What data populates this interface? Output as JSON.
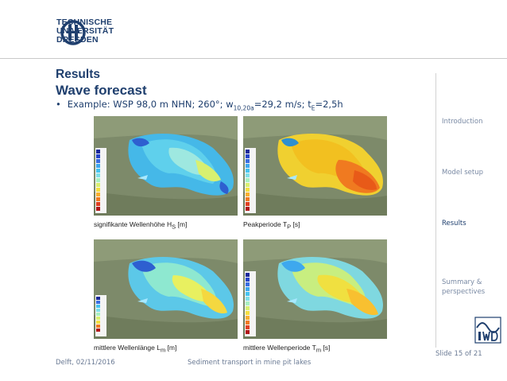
{
  "header": {
    "logo_line1": "TECHNISCHE",
    "logo_line2": "UNIVERSITÄT",
    "logo_line3": "DRESDEN"
  },
  "title": "Results",
  "subtitle": "Wave forecast",
  "bullet": {
    "prefix": "Example: WSP 98,0 m NHN; 260°; w",
    "sub1": "10,20a",
    "mid": "=29,2 m/s; t",
    "sub2": "E",
    "suffix": "=2,5h"
  },
  "nav": [
    {
      "label": "Introduction",
      "active": false
    },
    {
      "label": "Model setup",
      "active": false
    },
    {
      "label": "Results",
      "active": true
    },
    {
      "label": "Summary & perspectives",
      "active": false
    }
  ],
  "panels": [
    {
      "caption_main": "signifikante Wellenhöhe H",
      "caption_sub": "S",
      "caption_unit": " [m]"
    },
    {
      "caption_main": "Peakperiode T",
      "caption_sub": "P",
      "caption_unit": " [s]"
    },
    {
      "caption_main": "mittlere Wellenlänge L",
      "caption_sub": "m",
      "caption_unit": " [m]"
    },
    {
      "caption_main": "mittlere Wellenperiode T",
      "caption_sub": "m",
      "caption_unit": " [s]"
    }
  ],
  "footer": {
    "place_date": "Delft, 02/11/2016",
    "talk_title": "Sediment transport in mine pit lakes",
    "slide_number": "Slide 15 of 21"
  },
  "colors": {
    "brand_blue": "#1f3f6e",
    "nav_grey": "#7a8aa4"
  }
}
